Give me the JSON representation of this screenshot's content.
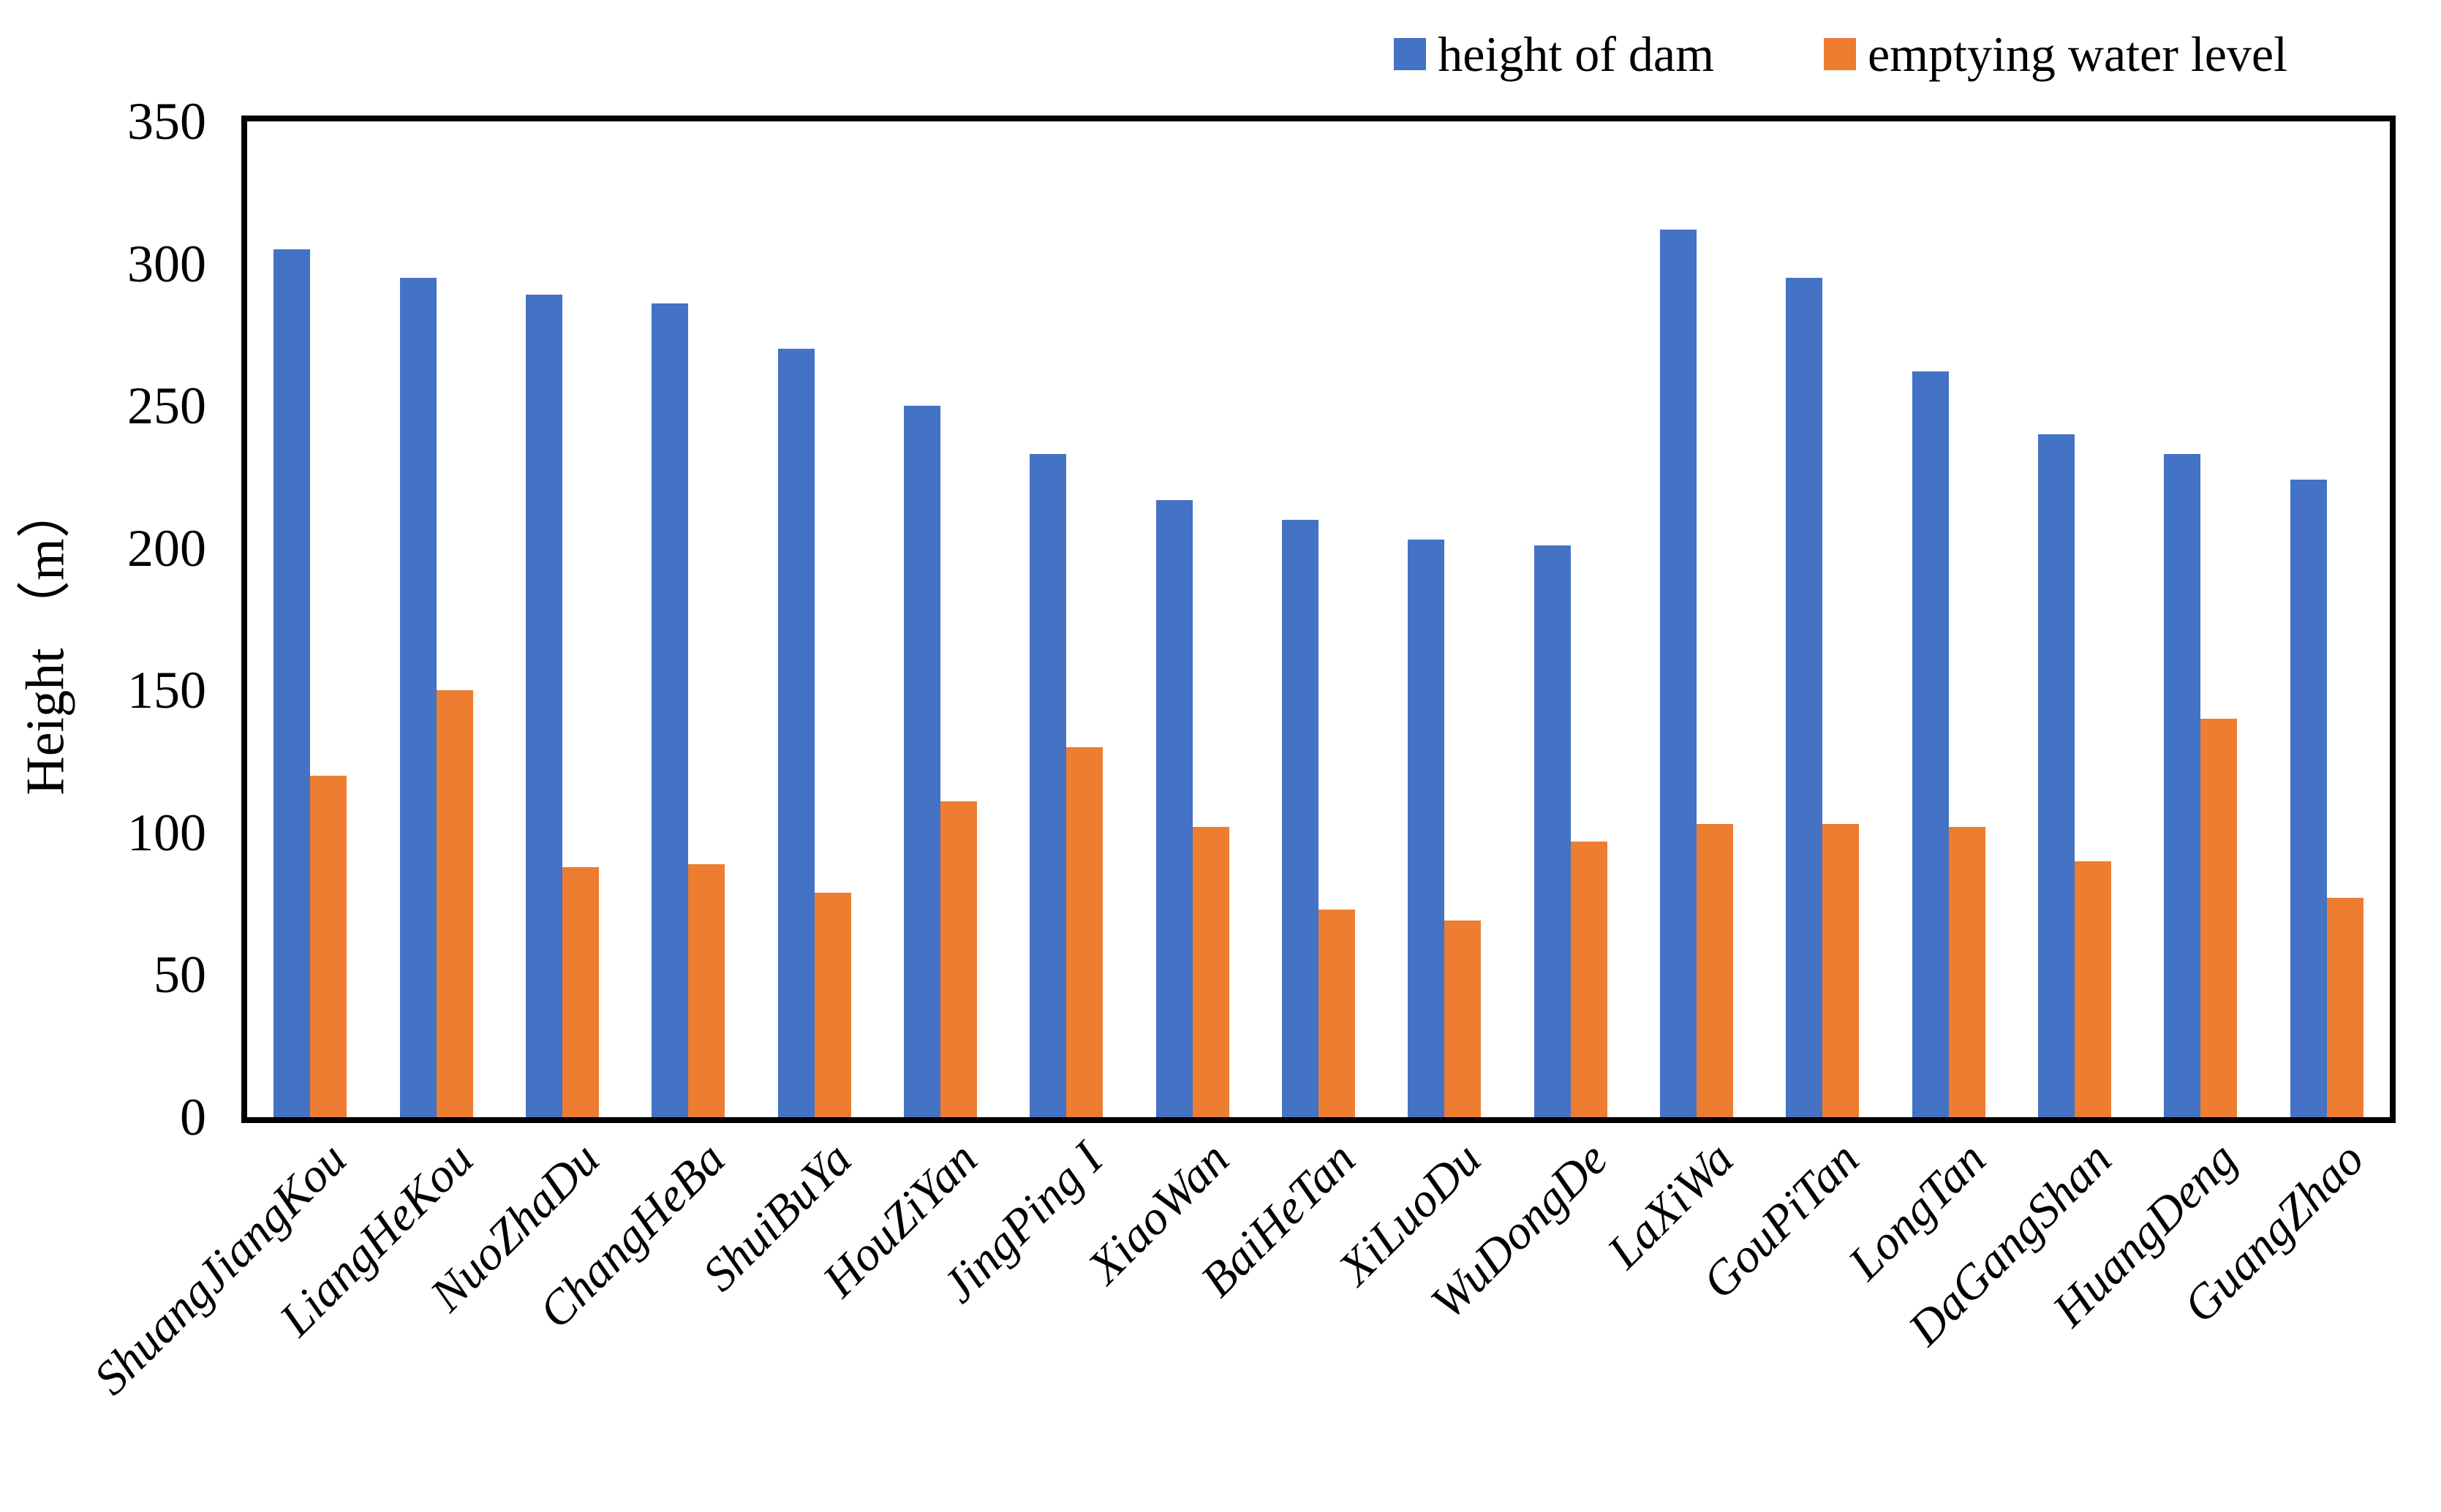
{
  "chart_data": {
    "type": "bar",
    "categories": [
      "ShuangJiangKou",
      "LiangHeKou",
      "NuoZhaDu",
      "ChangHeBa",
      "ShuiBuYa",
      "HouZiYan",
      "JingPing I",
      "XiaoWan",
      "BaiHeTan",
      "XiLuoDu",
      "WuDongDe",
      "LaXiWa",
      "GouPiTan",
      "LongTan",
      "DaGangShan",
      "HuangDeng",
      "GuangZhao"
    ],
    "series": [
      {
        "name": "height of dam",
        "color": "#4472C4",
        "values": [
          305,
          295,
          289,
          286,
          270,
          250,
          233,
          217,
          210,
          203,
          201,
          312,
          295,
          262,
          240,
          233,
          224
        ]
      },
      {
        "name": "emptying water level",
        "color": "#ED7D31",
        "values": [
          120,
          150,
          88,
          89,
          79,
          111,
          130,
          102,
          73,
          69,
          97,
          103,
          103,
          102,
          90,
          140,
          77
        ]
      }
    ],
    "title": "",
    "xlabel": "",
    "ylabel": "Height （m）",
    "ylim": [
      0,
      350
    ],
    "yticks": [
      0,
      50,
      100,
      150,
      200,
      250,
      300,
      350
    ],
    "grid": false,
    "legend_position": "top-right",
    "axis_color": "#000000",
    "background": "#FFFFFF"
  }
}
